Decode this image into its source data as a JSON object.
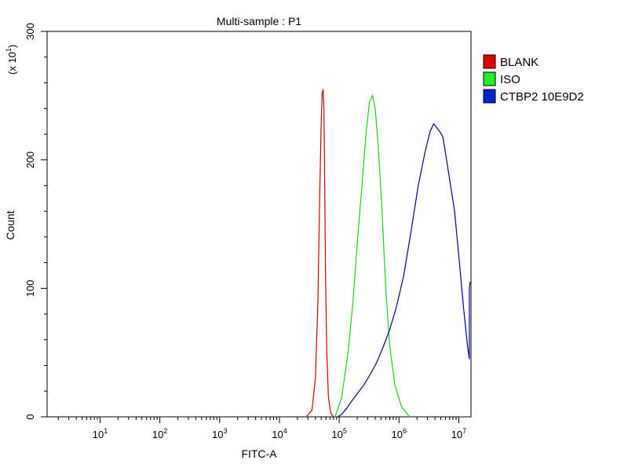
{
  "chart_data": {
    "type": "line",
    "title": "Multi-sample : P1",
    "xlabel": "FITC-A",
    "ylabel": "Count",
    "ylabel_multiplier": "(x 10",
    "ylabel_multiplier_exp": "1",
    "ylabel_multiplier_close": ")",
    "x_scale": "log",
    "xlim": [
      1.3,
      16000000
    ],
    "ylim": [
      0,
      300
    ],
    "x_ticks": [
      {
        "value": 10,
        "base": "10",
        "exp": "1"
      },
      {
        "value": 100,
        "base": "10",
        "exp": "2"
      },
      {
        "value": 1000,
        "base": "10",
        "exp": "3"
      },
      {
        "value": 10000,
        "base": "10",
        "exp": "4"
      },
      {
        "value": 100000,
        "base": "10",
        "exp": "5"
      },
      {
        "value": 1000000,
        "base": "10",
        "exp": "6"
      },
      {
        "value": 10000000,
        "base": "10",
        "exp": "7"
      }
    ],
    "y_ticks": [
      "0",
      "100",
      "200",
      "300"
    ],
    "y_tick_values": [
      0,
      100,
      200,
      300
    ],
    "grid": false,
    "legend_position": "right",
    "series": [
      {
        "name": "BLANK",
        "color": "#cc0000",
        "legend_color": "#dd0000",
        "x": [
          28000,
          35000,
          40000,
          44000,
          47000,
          50000,
          52000,
          54000,
          55500,
          57000,
          59000,
          62000,
          66000,
          72000,
          80000
        ],
        "y": [
          0,
          5,
          30,
          90,
          170,
          230,
          252,
          255,
          240,
          190,
          110,
          50,
          15,
          3,
          0
        ]
      },
      {
        "name": "ISO",
        "color": "#22cc22",
        "legend_color": "#22ee22",
        "x": [
          85000,
          110000,
          140000,
          170000,
          200000,
          240000,
          280000,
          320000,
          360000,
          400000,
          450000,
          520000,
          600000,
          700000,
          850000,
          1100000,
          1500000
        ],
        "y": [
          0,
          15,
          50,
          90,
          135,
          180,
          220,
          245,
          250,
          240,
          210,
          160,
          100,
          55,
          25,
          8,
          0
        ]
      },
      {
        "name": "CTBP2 10E9D2",
        "color": "#000099",
        "legend_color": "#0022cc",
        "x": [
          95000,
          110000,
          130000,
          160000,
          200000,
          260000,
          330000,
          420000,
          550000,
          700000,
          900000,
          1200000,
          1600000,
          2100000,
          2700000,
          3300000,
          3800000,
          4300000,
          4800000,
          5400000,
          6000000,
          7000000,
          8500000,
          10000000,
          12000000,
          14000000,
          15000000,
          15000000,
          15500000
        ],
        "y": [
          0,
          2,
          6,
          12,
          18,
          25,
          33,
          42,
          55,
          68,
          85,
          110,
          145,
          180,
          205,
          222,
          228,
          225,
          222,
          218,
          205,
          185,
          160,
          125,
          85,
          55,
          45,
          100,
          105
        ]
      }
    ]
  }
}
